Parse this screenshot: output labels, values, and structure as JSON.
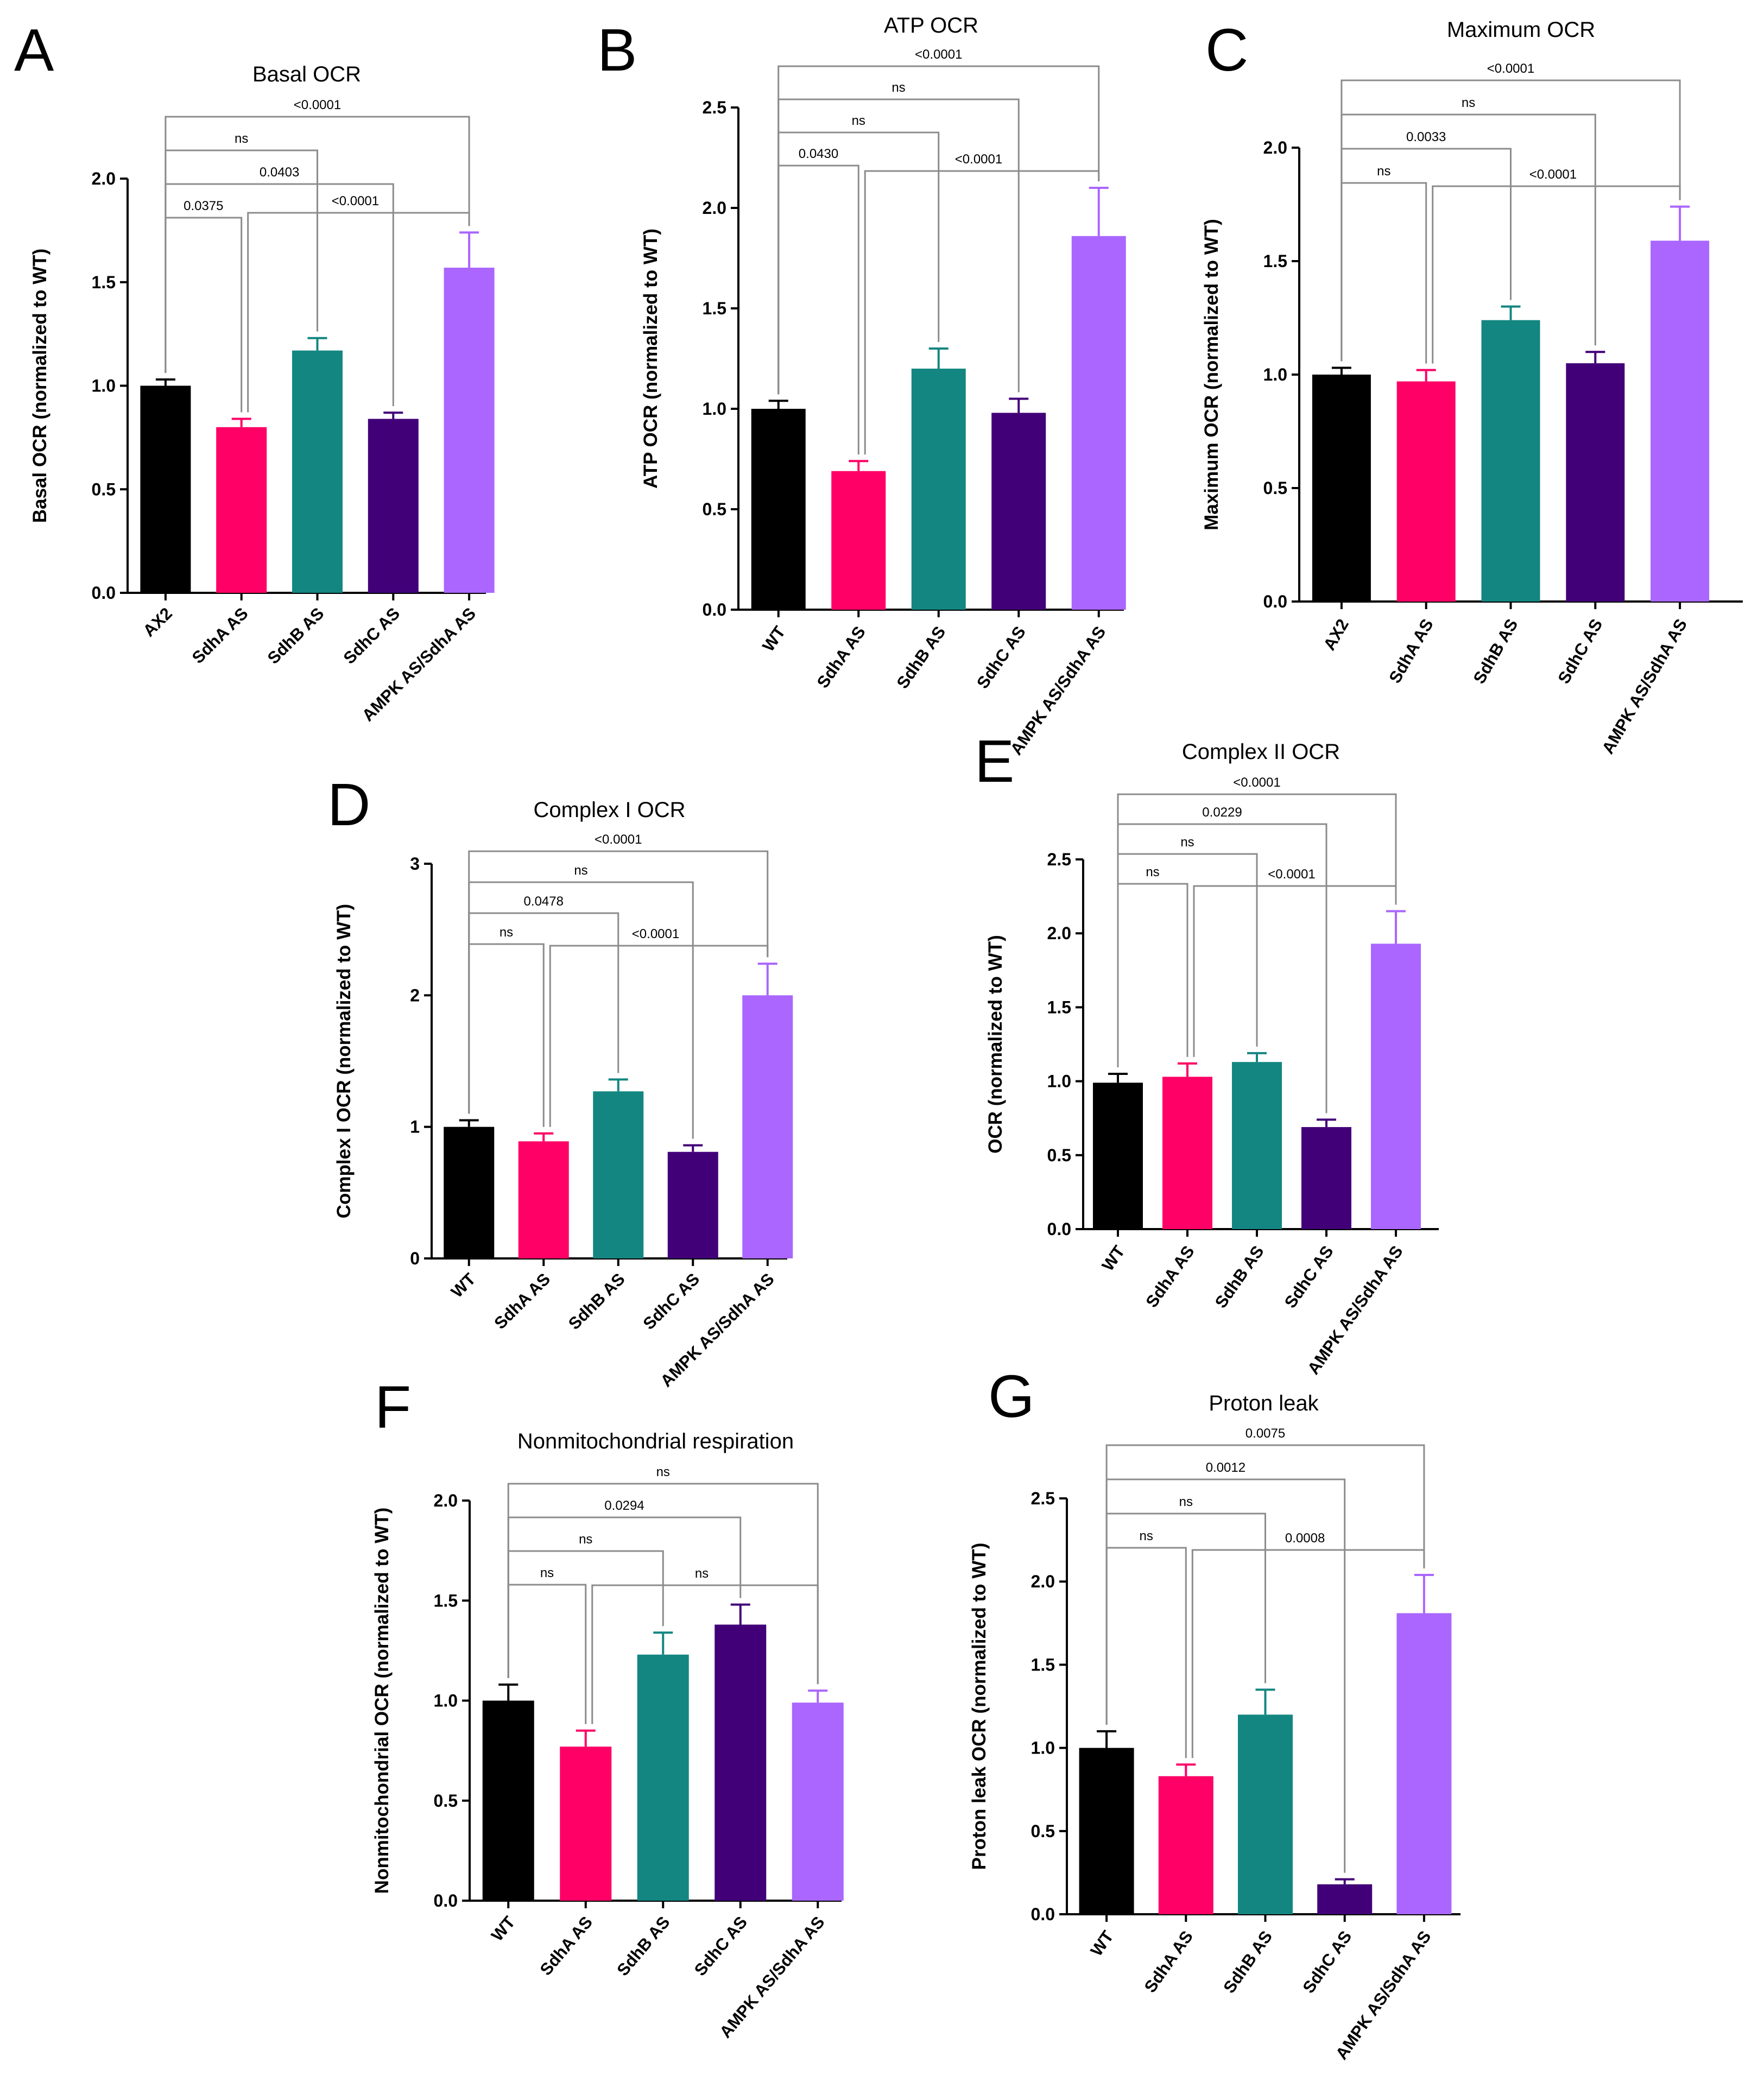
{
  "figure": {
    "colors": {
      "black": "#000000",
      "pink": "#ff0066",
      "teal": "#138681",
      "purple": "#420078",
      "lilac": "#aa66ff",
      "bracket": "#8c8c8c"
    }
  },
  "chart_data": [
    {
      "panel": "A",
      "type": "bar",
      "title": "Basal OCR",
      "ylabel": "Basal OCR (normalized to WT)",
      "xlabel": "",
      "ylim": [
        0,
        2.0
      ],
      "yticks": [
        "0.0",
        "0.5",
        "1.0",
        "1.5",
        "2.0"
      ],
      "categories": [
        "AX2",
        "SdhA AS",
        "SdhB AS",
        "SdhC AS",
        "AMPK AS/SdhA AS"
      ],
      "values": [
        1.0,
        0.8,
        1.17,
        0.84,
        1.57
      ],
      "errors": [
        0.03,
        0.04,
        0.06,
        0.03,
        0.17
      ],
      "comparisons": [
        {
          "from": 0,
          "to": 4,
          "label": "<0.0001"
        },
        {
          "from": 0,
          "to": 2,
          "label": "ns"
        },
        {
          "from": 0,
          "to": 3,
          "label": "0.0403"
        },
        {
          "from": 0,
          "to": 1,
          "label": "0.0375"
        },
        {
          "from": 1,
          "to": 4,
          "label": "<0.0001"
        }
      ]
    },
    {
      "panel": "B",
      "type": "bar",
      "title": "ATP OCR",
      "ylabel": "ATP OCR (normalized to WT)",
      "xlabel": "",
      "ylim": [
        0,
        2.5
      ],
      "yticks": [
        "0.0",
        "0.5",
        "1.0",
        "1.5",
        "2.0",
        "2.5"
      ],
      "categories": [
        "WT",
        "SdhA AS",
        "SdhB AS",
        "SdhC AS",
        "AMPK AS/SdhA AS"
      ],
      "values": [
        1.0,
        0.69,
        1.2,
        0.98,
        1.86
      ],
      "errors": [
        0.04,
        0.05,
        0.1,
        0.07,
        0.24
      ],
      "comparisons": [
        {
          "from": 0,
          "to": 4,
          "label": "<0.0001"
        },
        {
          "from": 0,
          "to": 3,
          "label": "ns"
        },
        {
          "from": 0,
          "to": 2,
          "label": "ns"
        },
        {
          "from": 0,
          "to": 1,
          "label": "0.0430"
        },
        {
          "from": 1,
          "to": 4,
          "label": "<0.0001"
        }
      ]
    },
    {
      "panel": "C",
      "type": "bar",
      "title": "Maximum OCR",
      "ylabel": "Maximum OCR (normalized to WT)",
      "xlabel": "",
      "ylim": [
        0,
        2.0
      ],
      "yticks": [
        "0.0",
        "0.5",
        "1.0",
        "1.5",
        "2.0"
      ],
      "categories": [
        "AX2",
        "SdhA AS",
        "SdhB AS",
        "SdhC AS",
        "AMPK AS/SdhA AS"
      ],
      "values": [
        1.0,
        0.97,
        1.24,
        1.05,
        1.59
      ],
      "errors": [
        0.03,
        0.05,
        0.06,
        0.05,
        0.15
      ],
      "comparisons": [
        {
          "from": 0,
          "to": 4,
          "label": "<0.0001"
        },
        {
          "from": 0,
          "to": 3,
          "label": "ns"
        },
        {
          "from": 0,
          "to": 2,
          "label": "0.0033"
        },
        {
          "from": 0,
          "to": 1,
          "label": "ns"
        },
        {
          "from": 1,
          "to": 4,
          "label": "<0.0001"
        }
      ]
    },
    {
      "panel": "D",
      "type": "bar",
      "title": "Complex I OCR",
      "ylabel": "Complex I OCR (normalized to WT)",
      "xlabel": "",
      "ylim": [
        0,
        3
      ],
      "yticks": [
        "0",
        "1",
        "2",
        "3"
      ],
      "categories": [
        "WT",
        "SdhA AS",
        "SdhB AS",
        "SdhC AS",
        "AMPK AS/SdhA AS"
      ],
      "values": [
        1.0,
        0.89,
        1.27,
        0.81,
        2.0
      ],
      "errors": [
        0.05,
        0.06,
        0.09,
        0.05,
        0.24
      ],
      "comparisons": [
        {
          "from": 0,
          "to": 4,
          "label": "<0.0001"
        },
        {
          "from": 0,
          "to": 3,
          "label": "ns"
        },
        {
          "from": 0,
          "to": 2,
          "label": "0.0478"
        },
        {
          "from": 0,
          "to": 1,
          "label": "ns"
        },
        {
          "from": 1,
          "to": 4,
          "label": "<0.0001"
        }
      ]
    },
    {
      "panel": "E",
      "type": "bar",
      "title": "Complex II OCR",
      "ylabel": "OCR (normalized to WT)",
      "xlabel": "",
      "ylim": [
        0,
        2.5
      ],
      "yticks": [
        "0.0",
        "0.5",
        "1.0",
        "1.5",
        "2.0",
        "2.5"
      ],
      "categories": [
        "WT",
        "SdhA AS",
        "SdhB AS",
        "SdhC AS",
        "AMPK AS/SdhA AS"
      ],
      "values": [
        0.99,
        1.03,
        1.13,
        0.69,
        1.93
      ],
      "errors": [
        0.06,
        0.09,
        0.06,
        0.05,
        0.22
      ],
      "comparisons": [
        {
          "from": 0,
          "to": 4,
          "label": "<0.0001"
        },
        {
          "from": 0,
          "to": 3,
          "label": "0.0229"
        },
        {
          "from": 0,
          "to": 2,
          "label": "ns"
        },
        {
          "from": 0,
          "to": 1,
          "label": "ns"
        },
        {
          "from": 1,
          "to": 4,
          "label": "<0.0001"
        }
      ]
    },
    {
      "panel": "F",
      "type": "bar",
      "title": "Nonmitochondrial respiration",
      "ylabel": "Nonmitochondrial OCR (normalized to WT)",
      "xlabel": "",
      "ylim": [
        0,
        2.0
      ],
      "yticks": [
        "0.0",
        "0.5",
        "1.0",
        "1.5",
        "2.0"
      ],
      "categories": [
        "WT",
        "SdhA AS",
        "SdhB AS",
        "SdhC AS",
        "AMPK AS/SdhA AS"
      ],
      "values": [
        1.0,
        0.77,
        1.23,
        1.38,
        0.99
      ],
      "errors": [
        0.08,
        0.08,
        0.11,
        0.1,
        0.06
      ],
      "comparisons": [
        {
          "from": 0,
          "to": 4,
          "label": "ns"
        },
        {
          "from": 0,
          "to": 3,
          "label": "0.0294"
        },
        {
          "from": 0,
          "to": 2,
          "label": "ns"
        },
        {
          "from": 0,
          "to": 1,
          "label": "ns"
        },
        {
          "from": 1,
          "to": 4,
          "label": "ns"
        }
      ]
    },
    {
      "panel": "G",
      "type": "bar",
      "title": "Proton leak",
      "ylabel": "Proton leak OCR (normalized to WT)",
      "xlabel": "",
      "ylim": [
        0,
        2.5
      ],
      "yticks": [
        "0.0",
        "0.5",
        "1.0",
        "1.5",
        "2.0",
        "2.5"
      ],
      "categories": [
        "WT",
        "SdhA AS",
        "SdhB AS",
        "SdhC AS",
        "AMPK AS/SdhA AS"
      ],
      "values": [
        1.0,
        0.83,
        1.2,
        0.18,
        1.81
      ],
      "errors": [
        0.1,
        0.07,
        0.15,
        0.03,
        0.23
      ],
      "comparisons": [
        {
          "from": 0,
          "to": 4,
          "label": "0.0075"
        },
        {
          "from": 0,
          "to": 3,
          "label": "0.0012"
        },
        {
          "from": 0,
          "to": 2,
          "label": "ns"
        },
        {
          "from": 0,
          "to": 1,
          "label": "ns"
        },
        {
          "from": 1,
          "to": 4,
          "label": "0.0008"
        }
      ]
    }
  ]
}
